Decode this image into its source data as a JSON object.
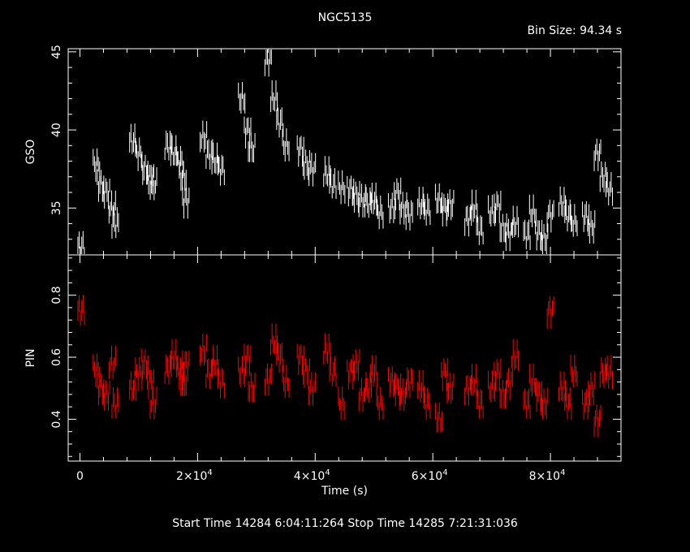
{
  "title": "NGC5135",
  "bin_size_label": "Bin Size:  94.34  s",
  "footer": "Start Time 14284   6:04:11:264     Stop Time 14285   7:21:31:036",
  "colors": {
    "gso": "#ffffff",
    "pin": "#ff0000",
    "axes": "#ffffff",
    "background": "#000000"
  },
  "chart_data": [
    {
      "type": "line",
      "name": "GSO panel",
      "ylabel": "GSO",
      "xlabel": "",
      "xlim": [
        -2000,
        92000
      ],
      "ylim": [
        32,
        45.2
      ],
      "yticks": [
        35,
        40,
        45
      ],
      "xticks": [
        0,
        20000,
        40000,
        60000,
        80000
      ],
      "series": [
        {
          "name": "GSO",
          "x": [
            200,
            2800,
            3500,
            4500,
            5500,
            6000,
            9000,
            10000,
            11000,
            12000,
            12500,
            15000,
            16000,
            17000,
            17500,
            18000,
            21000,
            22000,
            23000,
            24000,
            27500,
            28500,
            29200,
            32000,
            33000,
            34000,
            35000,
            37500,
            38500,
            39500,
            42000,
            43000,
            44500,
            46000,
            47000,
            48000,
            49000,
            50000,
            51000,
            53000,
            54000,
            55000,
            56000,
            58000,
            59000,
            61000,
            62000,
            63000,
            66000,
            67000,
            68000,
            70000,
            71000,
            72000,
            73000,
            74000,
            76000,
            77000,
            78000,
            79000,
            80000,
            82000,
            83000,
            84000,
            86000,
            87000,
            88000,
            89000,
            90000
          ],
          "y": [
            32.5,
            37.8,
            36.5,
            36,
            35,
            34,
            39.3,
            38.5,
            37.5,
            37,
            36.5,
            39,
            38.5,
            38,
            37,
            35.5,
            39.5,
            38.5,
            38,
            37.5,
            42,
            40,
            38.8,
            44.5,
            42,
            40.5,
            39,
            38.8,
            37.8,
            37.5,
            37.2,
            36.5,
            36.3,
            36.2,
            35.8,
            35.5,
            35.3,
            35.5,
            34.7,
            35,
            36,
            35,
            34.6,
            35.2,
            34.9,
            35.5,
            35,
            35.2,
            34.3,
            35,
            33.6,
            34.7,
            35.2,
            33.7,
            33.4,
            34,
            33.3,
            34.7,
            33.4,
            33,
            34.6,
            35.3,
            34.5,
            34.1,
            34.5,
            33.8,
            38.5,
            37,
            36.2
          ]
        }
      ]
    },
    {
      "type": "line",
      "name": "PIN panel",
      "ylabel": "PIN",
      "xlabel": "Time (s)",
      "xlim": [
        -2000,
        92000
      ],
      "ylim": [
        0.265,
        0.93
      ],
      "yticks": [
        0.4,
        0.6,
        0.8
      ],
      "xticks": [
        0,
        20000,
        40000,
        60000,
        80000
      ],
      "series": [
        {
          "name": "PIN",
          "x": [
            200,
            2800,
            3500,
            4500,
            5500,
            6000,
            9000,
            10000,
            11000,
            12000,
            12500,
            15000,
            16000,
            17000,
            17500,
            18000,
            21000,
            22000,
            23000,
            24000,
            27500,
            28500,
            29200,
            32000,
            33000,
            34000,
            35000,
            37500,
            38500,
            39500,
            42000,
            43000,
            44500,
            46000,
            47000,
            48000,
            49000,
            50000,
            51000,
            53000,
            54000,
            55000,
            56000,
            58000,
            59000,
            61000,
            62000,
            63000,
            66000,
            67000,
            68000,
            70000,
            71000,
            72000,
            73000,
            74000,
            76000,
            77000,
            78000,
            79000,
            80000,
            82000,
            83000,
            84000,
            86000,
            87000,
            88000,
            89000,
            90000
          ],
          "y": [
            0.75,
            0.56,
            0.5,
            0.48,
            0.58,
            0.45,
            0.5,
            0.55,
            0.58,
            0.52,
            0.45,
            0.56,
            0.6,
            0.55,
            0.52,
            0.58,
            0.62,
            0.55,
            0.58,
            0.52,
            0.55,
            0.6,
            0.5,
            0.53,
            0.65,
            0.6,
            0.52,
            0.6,
            0.55,
            0.5,
            0.62,
            0.55,
            0.45,
            0.55,
            0.58,
            0.48,
            0.5,
            0.55,
            0.45,
            0.52,
            0.5,
            0.48,
            0.52,
            0.5,
            0.45,
            0.4,
            0.55,
            0.5,
            0.5,
            0.52,
            0.45,
            0.5,
            0.55,
            0.48,
            0.52,
            0.6,
            0.45,
            0.52,
            0.48,
            0.45,
            0.75,
            0.5,
            0.45,
            0.55,
            0.45,
            0.5,
            0.4,
            0.55,
            0.55
          ]
        }
      ]
    }
  ]
}
